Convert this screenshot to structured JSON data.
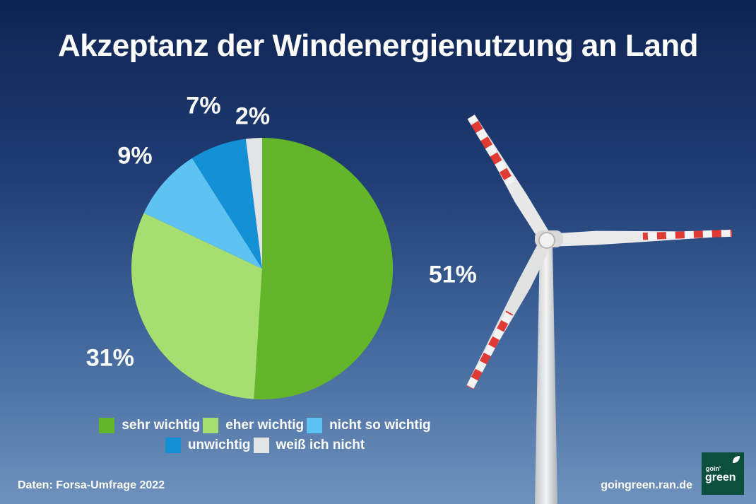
{
  "title": "Akzeptanz der Windenergienutzung an Land",
  "chart_data": {
    "type": "pie",
    "title": "Akzeptanz der Windenergienutzung an Land",
    "categories": [
      "sehr wichtig",
      "eher wichtig",
      "nicht so wichtig",
      "unwichtig",
      "weiß ich nicht"
    ],
    "values": [
      51,
      31,
      9,
      7,
      2
    ],
    "value_labels": [
      "51%",
      "31%",
      "9%",
      "7%",
      "2%"
    ],
    "colors": [
      "#63b52a",
      "#a6df70",
      "#5ec3f2",
      "#1490d6",
      "#e2e4e6"
    ],
    "legend_placement": "bottom"
  },
  "source": "Daten: Forsa-Umfrage 2022",
  "website": "goingreen.ran.de",
  "logo": {
    "small": "goin'",
    "big": "green",
    "icon": "leaf-icon",
    "color": "#0b4f3c"
  }
}
